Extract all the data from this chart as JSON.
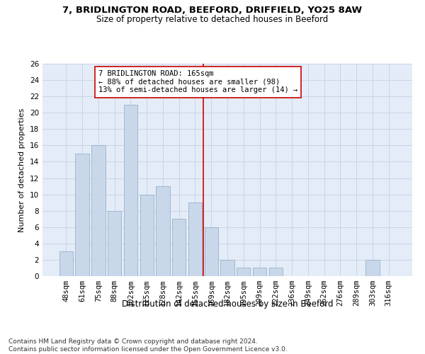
{
  "title1": "7, BRIDLINGTON ROAD, BEEFORD, DRIFFIELD, YO25 8AW",
  "title2": "Size of property relative to detached houses in Beeford",
  "xlabel": "Distribution of detached houses by size in Beeford",
  "ylabel": "Number of detached properties",
  "categories": [
    "48sqm",
    "61sqm",
    "75sqm",
    "88sqm",
    "102sqm",
    "115sqm",
    "128sqm",
    "142sqm",
    "155sqm",
    "169sqm",
    "182sqm",
    "195sqm",
    "209sqm",
    "222sqm",
    "236sqm",
    "249sqm",
    "262sqm",
    "276sqm",
    "289sqm",
    "303sqm",
    "316sqm"
  ],
  "values": [
    3,
    15,
    16,
    8,
    21,
    10,
    11,
    7,
    9,
    6,
    2,
    1,
    1,
    1,
    0,
    0,
    0,
    0,
    0,
    2,
    0
  ],
  "bar_color": "#c8d8ea",
  "bar_edge_color": "#9ab0c8",
  "vline_color": "#cc0000",
  "annotation_text": "7 BRIDLINGTON ROAD: 165sqm\n← 88% of detached houses are smaller (98)\n13% of semi-detached houses are larger (14) →",
  "annotation_box_color": "white",
  "annotation_box_edge": "#cc0000",
  "ylim": [
    0,
    26
  ],
  "yticks": [
    0,
    2,
    4,
    6,
    8,
    10,
    12,
    14,
    16,
    18,
    20,
    22,
    24,
    26
  ],
  "grid_color": "#c8d4e8",
  "bg_color": "#e4ecf7",
  "footnote": "Contains HM Land Registry data © Crown copyright and database right 2024.\nContains public sector information licensed under the Open Government Licence v3.0.",
  "title_fontsize": 9.5,
  "subtitle_fontsize": 8.5,
  "xlabel_fontsize": 8.5,
  "ylabel_fontsize": 8,
  "tick_fontsize": 7.5,
  "annot_fontsize": 7.5,
  "footnote_fontsize": 6.5
}
